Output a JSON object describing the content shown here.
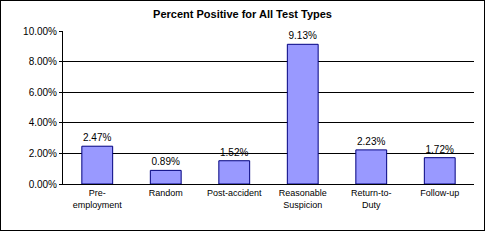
{
  "chart_data": {
    "type": "bar",
    "title": "Percent Positive for All Test Types",
    "categories": [
      "Pre-employment",
      "Random",
      "Post-accident",
      "Reasonable Suspicion",
      "Return-to-Duty",
      "Follow-up"
    ],
    "values": [
      2.47,
      0.89,
      1.52,
      9.13,
      2.23,
      1.72
    ],
    "value_labels": [
      "2.47%",
      "0.89%",
      "1.52%",
      "9.13%",
      "2.23%",
      "1.72%"
    ],
    "data_labels": true,
    "color": "#9999ff",
    "ylim": [
      0,
      10
    ],
    "yticks": [
      {
        "value": 0,
        "label": "0.00%"
      },
      {
        "value": 2,
        "label": "2.00%"
      },
      {
        "value": 4,
        "label": "4.00%"
      },
      {
        "value": 6,
        "label": "6.00%"
      },
      {
        "value": 8,
        "label": "8.00%"
      },
      {
        "value": 10,
        "label": "10.00%"
      }
    ],
    "grid": true
  }
}
